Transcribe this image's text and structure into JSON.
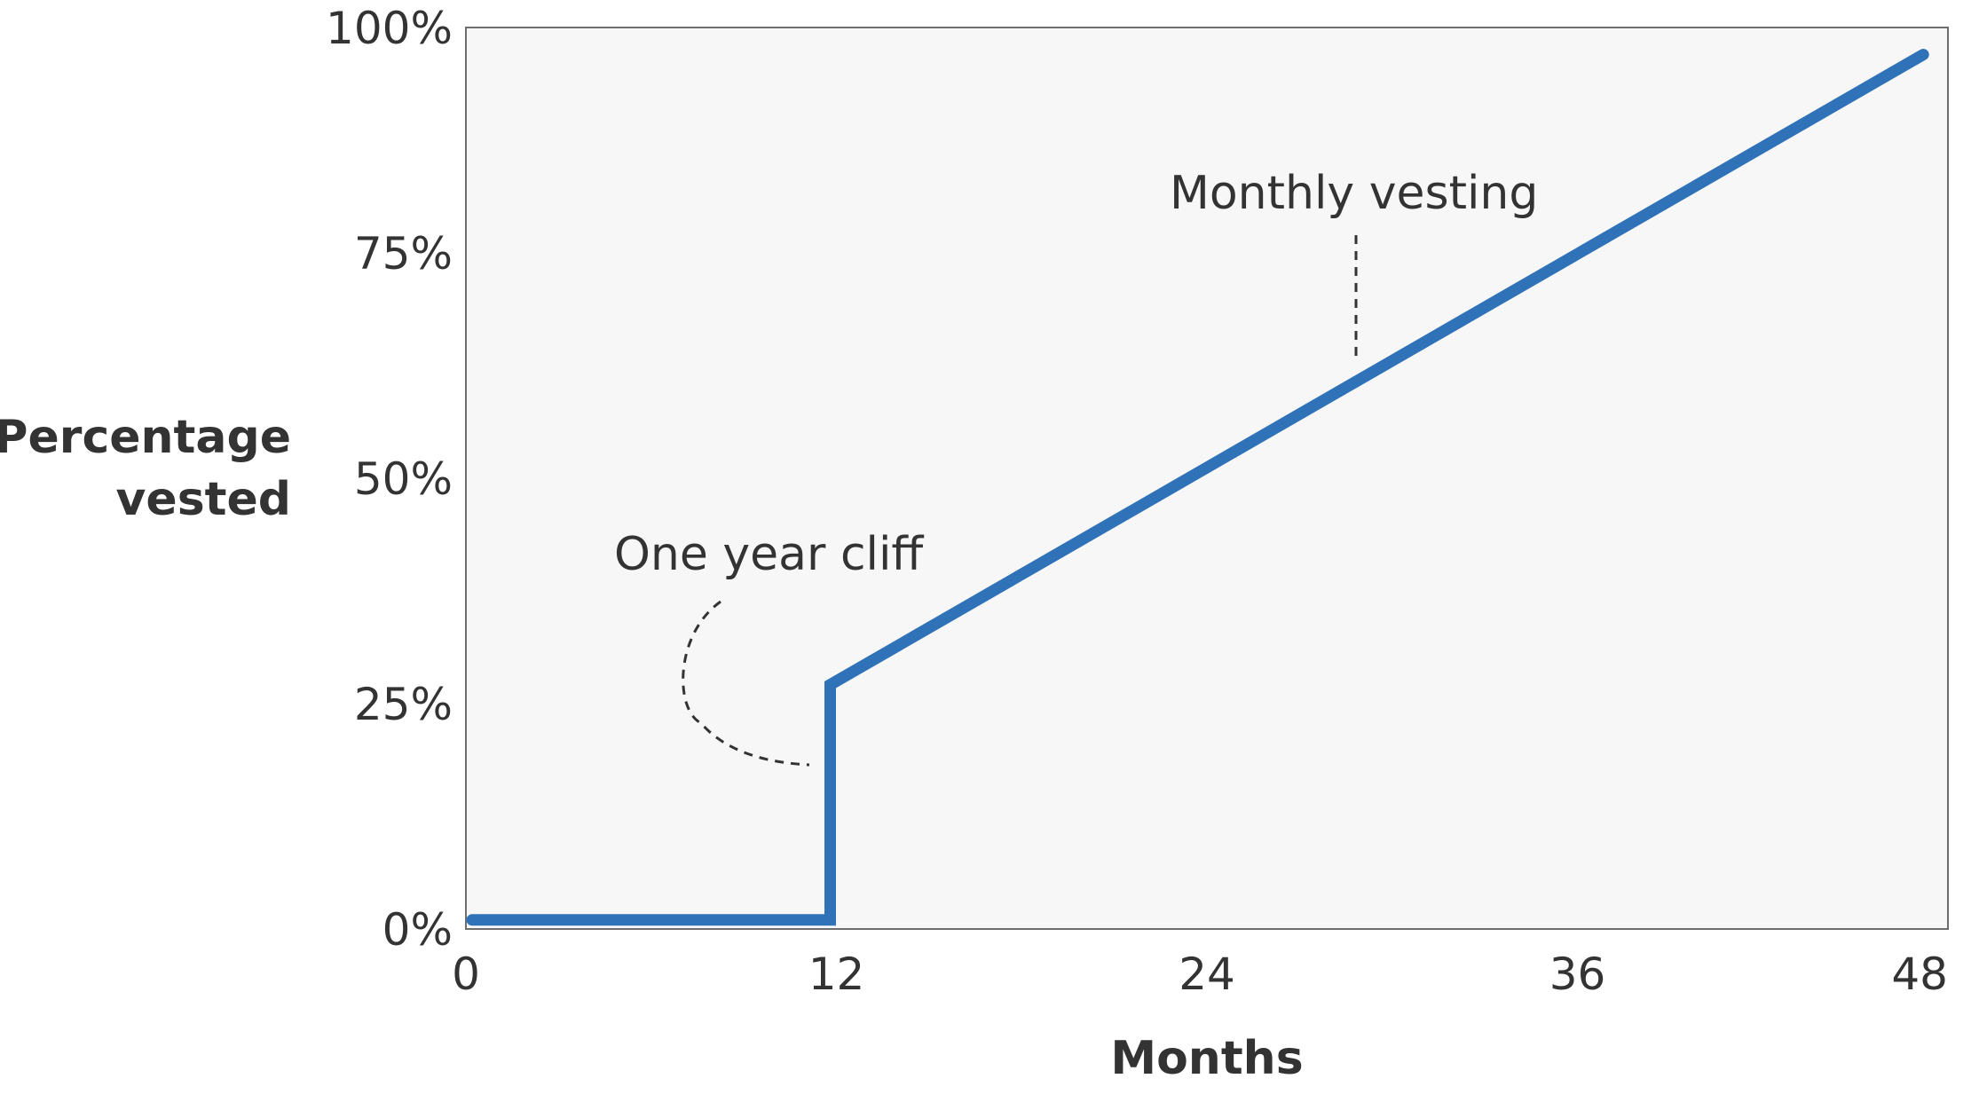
{
  "chart_data": {
    "type": "line",
    "title": "",
    "xlabel": "Months",
    "ylabel_lines": [
      "Percentage",
      "vested"
    ],
    "xlim": [
      0,
      48
    ],
    "ylim": [
      0,
      100
    ],
    "x_ticks": [
      0,
      12,
      24,
      36,
      48
    ],
    "x_tick_labels": [
      "0",
      "12",
      "24",
      "36",
      "48"
    ],
    "y_ticks": [
      0,
      25,
      50,
      75,
      100
    ],
    "y_tick_labels": [
      "0%",
      "25%",
      "50%",
      "75%",
      "100%"
    ],
    "grid": false,
    "legend": "none",
    "series": [
      {
        "color": "#2f72b8",
        "x": [
          0.2,
          11.8,
          11.8,
          47.2
        ],
        "y": [
          1,
          1,
          27.1,
          97
        ]
      }
    ],
    "annotations": [
      {
        "text": "One year cliff"
      },
      {
        "text": "Monthly vesting"
      }
    ]
  }
}
